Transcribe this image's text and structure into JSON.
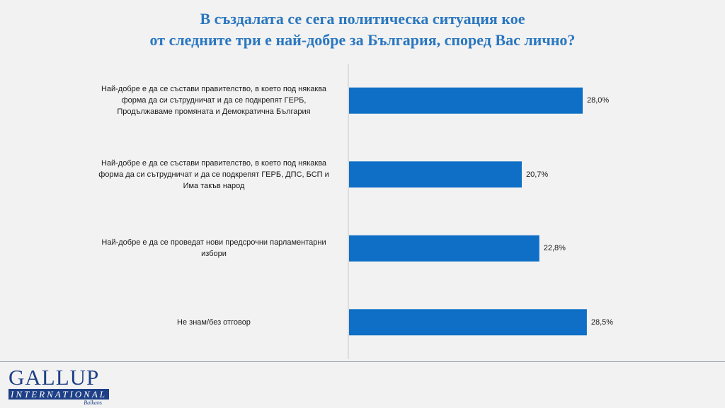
{
  "chart_data": {
    "type": "bar",
    "orientation": "horizontal",
    "title": "В създалата се сега политическа ситуация кое от следните три е най-добре за България, според Вас лично?",
    "title_lines": [
      "В създалата се сега политическа ситуация кое",
      "от следните три е най-добре за България, според Вас лично?"
    ],
    "categories": [
      "Най-добре е да се състави правителство, в което под някаква форма да си сътрудничат и да се подкрепят ГЕРБ, Продължаваме промяната и Демократична България",
      "Най-добре е да се състави правителство, в което под някаква форма да си сътрудничат и да се подкрепят ГЕРБ, ДПС, БСП и Има такъв народ",
      "Най-добре е да се проведат нови предсрочни парламентарни избори",
      "Не знам/без отговор"
    ],
    "category_lines": [
      [
        "Най-добре е да се състави правителство, в което под някаква",
        "форма да си сътрудничат и да се подкрепят ГЕРБ,",
        "Продължаваме промяната и Демократична България"
      ],
      [
        "Най-добре е да се състави правителство, в което под някаква",
        "форма да си сътрудничат и да се подкрепят ГЕРБ, ДПС, БСП и",
        "Има такъв народ"
      ],
      [
        "Най-добре е да се проведат нови предсрочни парламентарни",
        "избори"
      ],
      [
        "Не знам/без отговор"
      ]
    ],
    "values": [
      28.0,
      20.7,
      22.8,
      28.5
    ],
    "value_labels": [
      "28,0%",
      "20,7%",
      "22,8%",
      "28,5%"
    ],
    "unit": "%",
    "xlim": [
      0,
      35
    ],
    "grid": false,
    "legend": "none",
    "bar_color": "#0f6fc6"
  },
  "logo": {
    "name": "GALLUP",
    "line2": "INTERNATIONAL",
    "line3": "Balkans"
  },
  "colors": {
    "title": "#2a77c0",
    "bar": "#0f6fc6",
    "background": "#f2f2f2",
    "logo": "#1d3f86"
  }
}
